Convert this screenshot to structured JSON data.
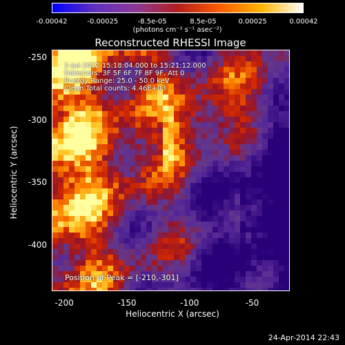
{
  "colorbar": {
    "tick_labels": [
      "-0.00042",
      "-0.00025",
      "-8.5e-05",
      "8.5e-05",
      "0.00025",
      "0.00042"
    ],
    "tick_values": [
      -0.00042,
      -0.00025,
      -8.5e-05,
      8.5e-05,
      0.00025,
      0.00042
    ],
    "units_label": "(photons cm⁻² s⁻¹ asec⁻²)",
    "range": [
      -0.00042,
      0.00042
    ],
    "colors": [
      "#0000ff",
      "#5f2fc0",
      "#8d3a96",
      "#b31e1e",
      "#ff5a00",
      "#ffb400",
      "#ffffff"
    ]
  },
  "image": {
    "title": "Reconstructed RHESSI Image",
    "info_lines": [
      "2-Jul-2012 15:18:04.000 to 15:21:12.000",
      "Detectors: 3F 5F 6F 7F 8F 9F, Att 0",
      "Energy Range: 25.0 - 50.0 keV",
      "Clean    Total counts: 4.46E+03"
    ],
    "peak_text": "Position of Peak = [-210,-301]",
    "xlabel": "Heliocentric X (arcsec)",
    "ylabel": "Heliocentric Y (arcsec)",
    "x_ticks": [
      "-200",
      "-150",
      "-100",
      "-50"
    ],
    "x_tick_values": [
      -200,
      -150,
      -100,
      -50
    ],
    "y_ticks": [
      "-250",
      "-300",
      "-350",
      "-400"
    ],
    "y_tick_values": [
      -250,
      -300,
      -350,
      -400
    ],
    "x_range": [
      -210,
      -20
    ],
    "y_range": [
      -244,
      -437
    ]
  },
  "footer": {
    "timestamp": "24-Apr-2014 22:43"
  }
}
